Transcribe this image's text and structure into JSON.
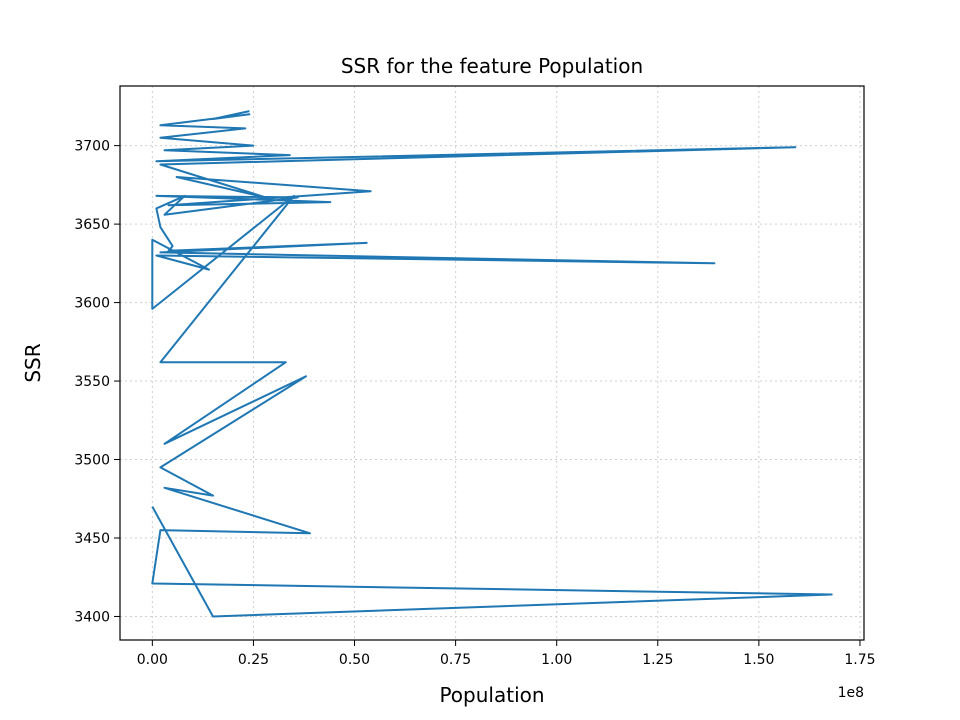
{
  "chart_data": {
    "type": "line",
    "title": "SSR for the feature Population",
    "xlabel": "Population",
    "ylabel": "SSR",
    "x_offset_label": "1e8",
    "x_scale": 100000000,
    "xlim": [
      -0.08,
      1.76
    ],
    "ylim": [
      3385,
      3738
    ],
    "xticks": [
      0.0,
      0.25,
      0.5,
      0.75,
      1.0,
      1.25,
      1.5,
      1.75
    ],
    "xtick_labels": [
      "0.00",
      "0.25",
      "0.50",
      "0.75",
      "1.00",
      "1.25",
      "1.50",
      "1.75"
    ],
    "yticks": [
      3400,
      3450,
      3500,
      3550,
      3600,
      3650,
      3700
    ],
    "ytick_labels": [
      "3400",
      "3450",
      "3500",
      "3550",
      "3600",
      "3650",
      "3700"
    ],
    "grid": true,
    "line_color": "#1f77b4",
    "series": [
      {
        "x": [
          0.24,
          0.15,
          0.24,
          0.02,
          0.23,
          0.02,
          0.25,
          0.03,
          0.34,
          0.01,
          1.59,
          0.02,
          0.28,
          0.06,
          0.54,
          0.04,
          0.44,
          0.01,
          0.36,
          0.03,
          0.08,
          0.01,
          0.02,
          0.05,
          0.04,
          0.53,
          0.02,
          1.39,
          0.01,
          0.14,
          0.0,
          0.0,
          0.0,
          0.35,
          0.02,
          0.33,
          0.03,
          0.38,
          0.02,
          0.15,
          0.03,
          0.39,
          0.02,
          0.0,
          1.68,
          0.15,
          0.0
        ],
        "y": [
          3722,
          3717,
          3720,
          3713,
          3711,
          3705,
          3700,
          3697,
          3694,
          3690,
          3699,
          3688,
          3667,
          3680,
          3671,
          3662,
          3664,
          3668,
          3667,
          3656,
          3668,
          3660,
          3648,
          3636,
          3633,
          3638,
          3632,
          3625,
          3630,
          3621,
          3640,
          3632,
          3596,
          3668,
          3562,
          3562,
          3510,
          3553,
          3495,
          3477,
          3482,
          3453,
          3455,
          3421,
          3414,
          3400,
          3470
        ]
      }
    ]
  }
}
